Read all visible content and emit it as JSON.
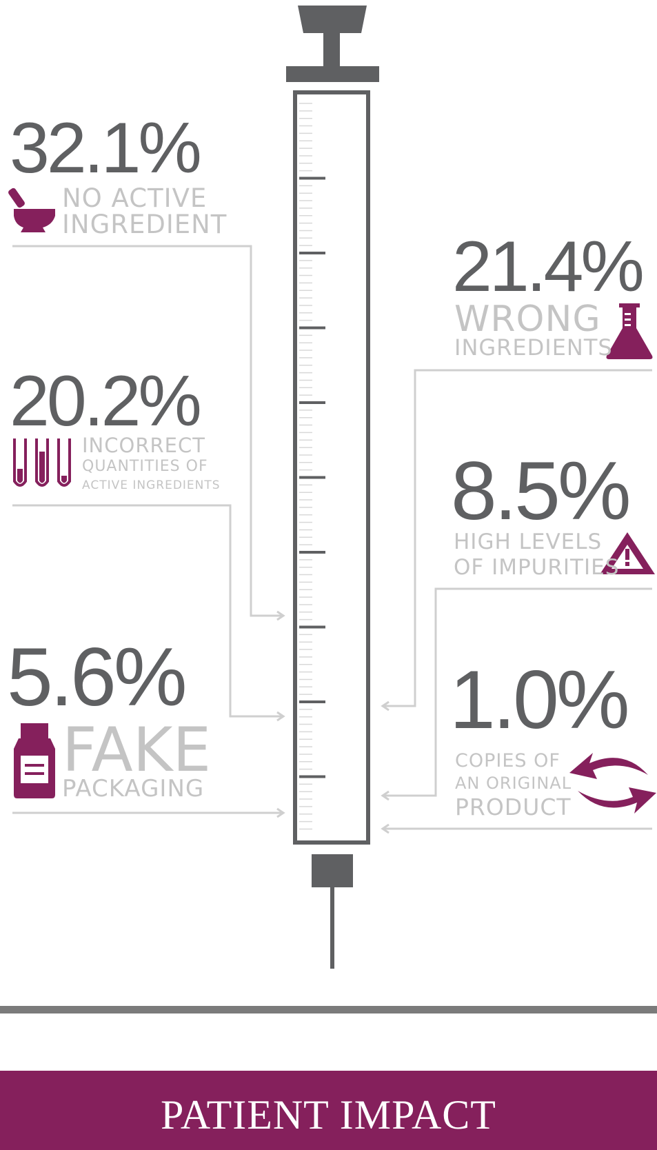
{
  "colors": {
    "accent": "#85205c",
    "dark_gray": "#5f6062",
    "light_gray": "#c4c4c4"
  },
  "stats": {
    "no_active": {
      "value": "32.1%",
      "line1": "NO ACTIVE",
      "line2": "INGREDIENT",
      "icon": "mortar-pestle-icon"
    },
    "incorrect_qty": {
      "value": "20.2%",
      "line1": "INCORRECT",
      "line2": "QUANTITIES OF",
      "line3": "ACTIVE INGREDIENTS",
      "icon": "test-tubes-icon"
    },
    "fake_pack": {
      "value": "5.6%",
      "line1": "FAKE",
      "line2": "PACKAGING",
      "icon": "medicine-bottle-icon"
    },
    "wrong_ing": {
      "value": "21.4%",
      "line1": "WRONG",
      "line2": "INGREDIENTS",
      "icon": "flask-icon"
    },
    "impurities": {
      "value": "8.5%",
      "line1": "HIGH LEVELS",
      "line2": "OF IMPURITIES",
      "icon": "warning-triangle-icon"
    },
    "copies": {
      "value": "1.0%",
      "line1": "COPIES OF",
      "line2": "AN ORIGINAL",
      "line3": "PRODUCT",
      "icon": "swap-arrows-icon"
    }
  },
  "banner": {
    "title": "PATIENT IMPACT"
  }
}
